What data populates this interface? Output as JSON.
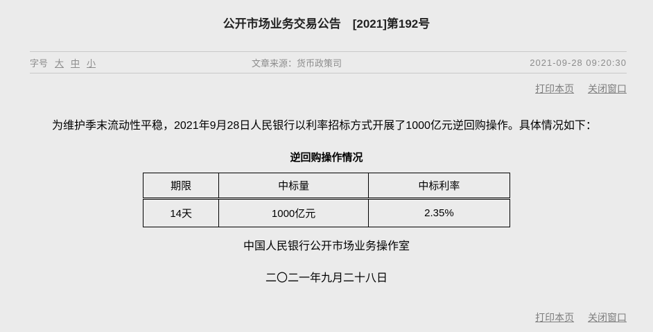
{
  "page": {
    "title": "公开市场业务交易公告　[2021]第192号"
  },
  "meta": {
    "font_size_label": "字号",
    "font_size_options": [
      "大",
      "中",
      "小"
    ],
    "source_label": "文章来源：",
    "source_value": "货币政策司",
    "timestamp": "2021-09-28  09:20:30"
  },
  "actions": {
    "print_label": "打印本页",
    "close_label": "关闭窗口"
  },
  "body": {
    "paragraph": "为维护季末流动性平稳，2021年9月28日人民银行以利率招标方式开展了1000亿元逆回购操作。具体情况如下：",
    "table_title": "逆回购操作情况",
    "signature": "中国人民银行公开市场业务操作室",
    "date": "二〇二一年九月二十八日"
  },
  "table": {
    "headers": [
      "期限",
      "中标量",
      "中标利率"
    ],
    "rows": [
      [
        "14天",
        "1000亿元",
        "2.35%"
      ]
    ]
  },
  "colors": {
    "background": "#ebebeb",
    "title_text": "#222222",
    "meta_text": "#8c8c8c",
    "link_text": "#7d7d7d",
    "body_text": "#000000",
    "divider": "#c8c8c8",
    "table_border": "#000000"
  }
}
